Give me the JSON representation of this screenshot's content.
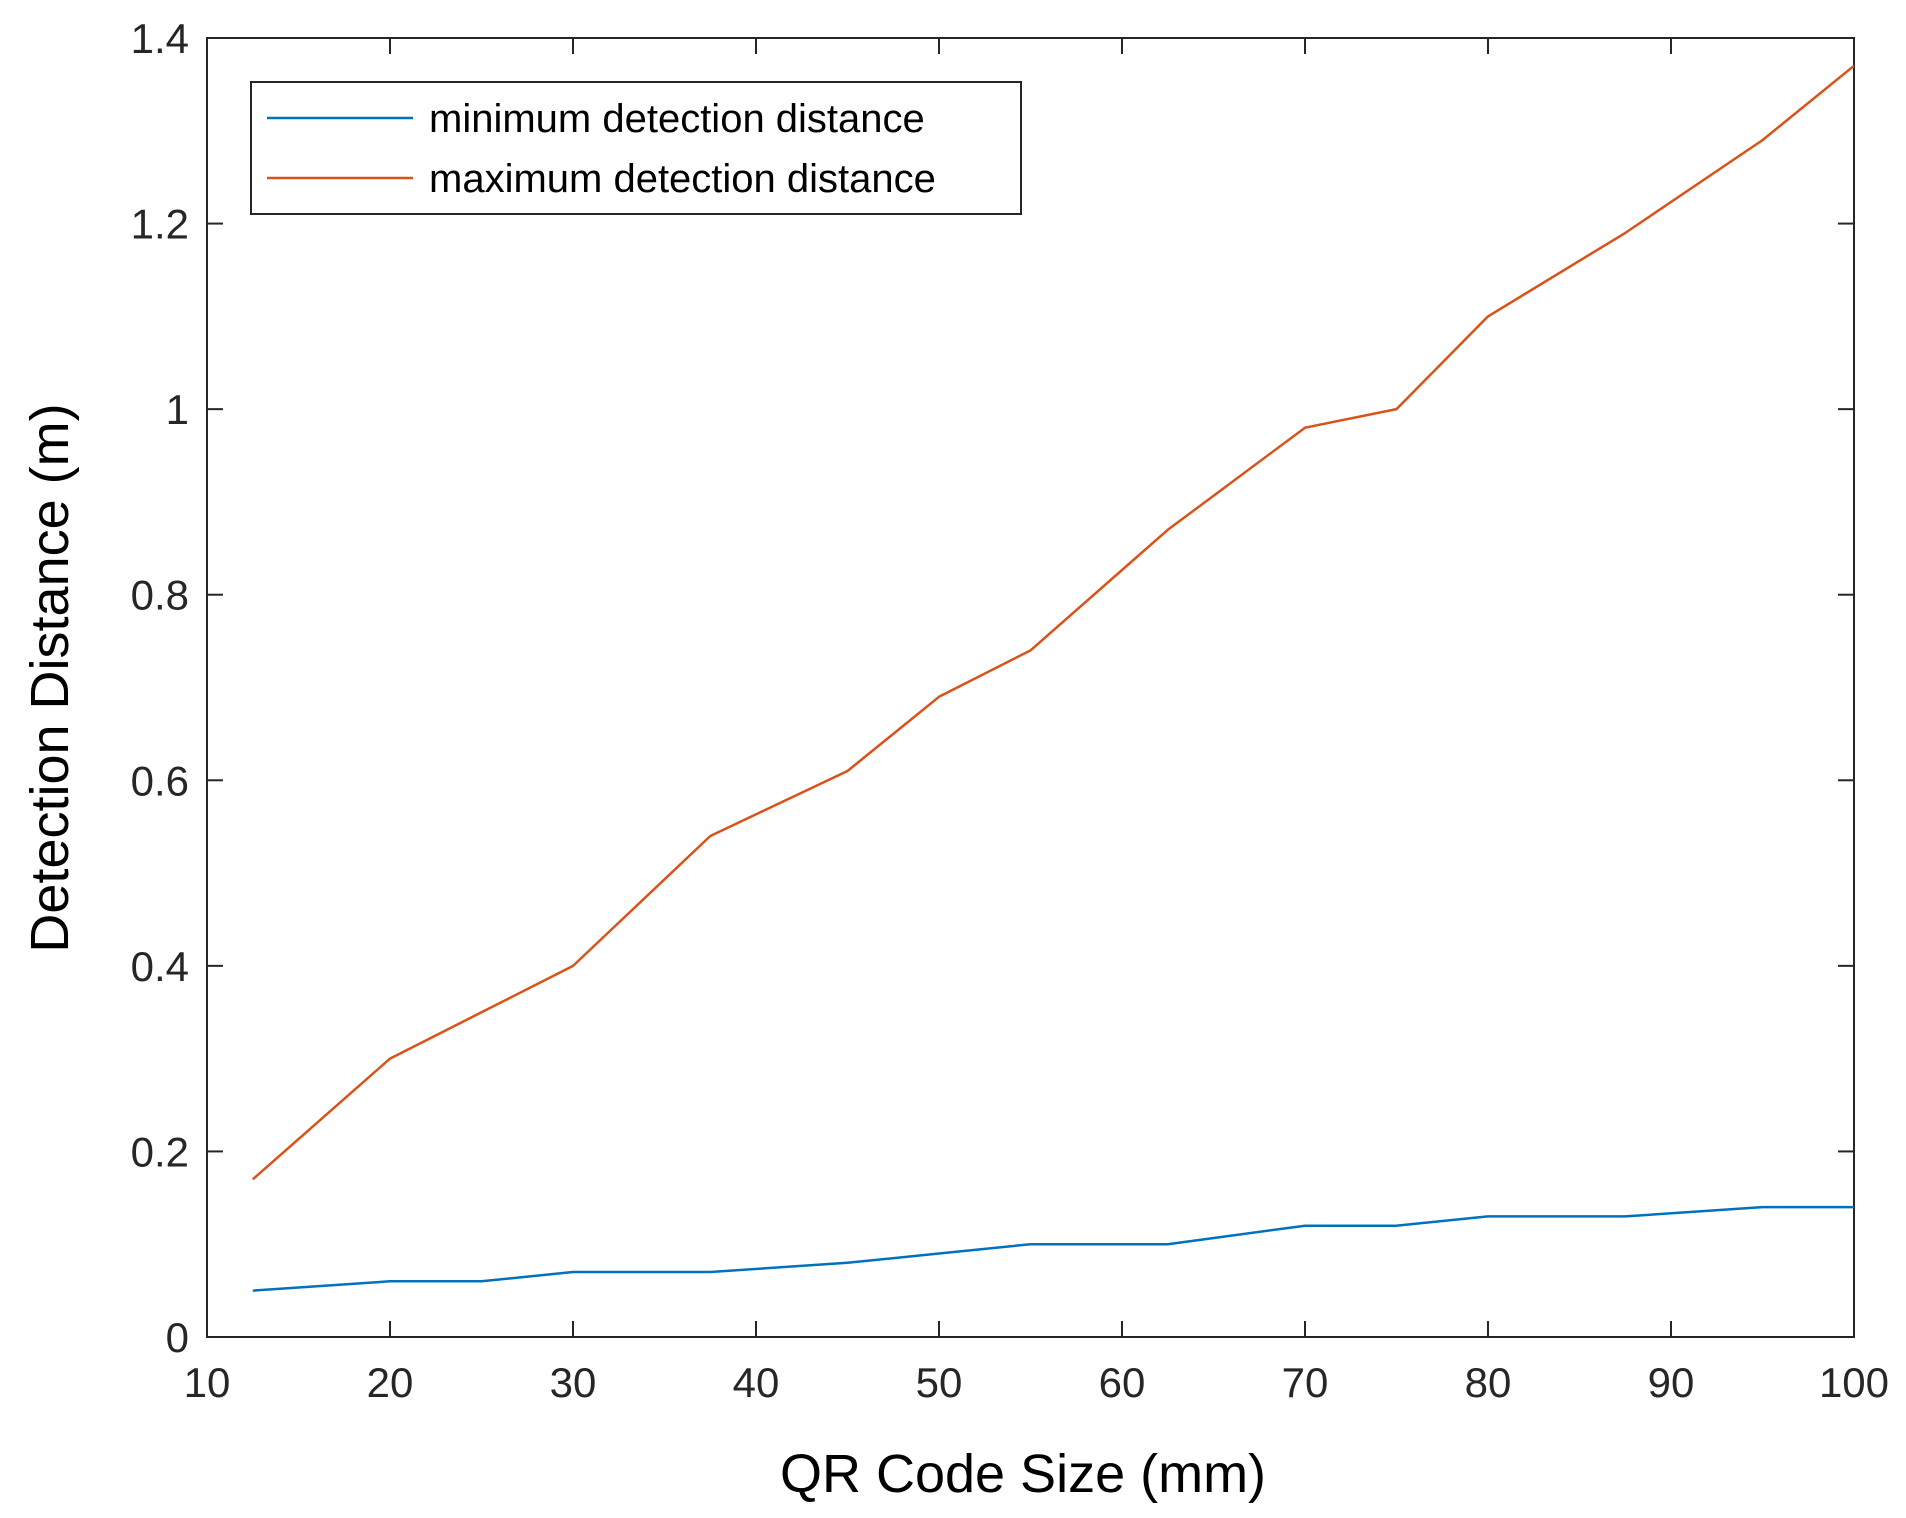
{
  "chart_data": {
    "type": "line",
    "title": "",
    "xlabel": "QR Code Size (mm)",
    "ylabel": "Detection Distance (m)",
    "xlim": [
      10,
      100
    ],
    "ylim": [
      0,
      1.4
    ],
    "xticks": [
      10,
      20,
      30,
      40,
      50,
      60,
      70,
      80,
      90,
      100
    ],
    "yticks": [
      0,
      0.2,
      0.4,
      0.6,
      0.8,
      1.0,
      1.2,
      1.4
    ],
    "xtick_labels": [
      "10",
      "20",
      "30",
      "40",
      "50",
      "60",
      "70",
      "80",
      "90",
      "100"
    ],
    "ytick_labels": [
      "0",
      "0.2",
      "0.4",
      "0.6",
      "0.8",
      "1",
      "1.2",
      "1.4"
    ],
    "grid": false,
    "legend_position": "top-left",
    "series": [
      {
        "name": "minimum detection distance",
        "color": "#0072BD",
        "x": [
          12.5,
          20,
          25,
          30,
          37.5,
          45,
          50,
          55,
          62.5,
          70,
          75,
          80,
          87.5,
          95,
          100
        ],
        "y": [
          0.05,
          0.06,
          0.06,
          0.07,
          0.07,
          0.08,
          0.09,
          0.1,
          0.1,
          0.12,
          0.12,
          0.13,
          0.13,
          0.14,
          0.14
        ]
      },
      {
        "name": "maximum detection distance",
        "color": "#D95319",
        "x": [
          12.5,
          20,
          25,
          30,
          37.5,
          45,
          50,
          55,
          62.5,
          70,
          75,
          80,
          87.5,
          95,
          100
        ],
        "y": [
          0.17,
          0.3,
          0.35,
          0.4,
          0.54,
          0.61,
          0.69,
          0.74,
          0.87,
          0.98,
          1.0,
          1.1,
          1.19,
          1.29,
          1.37
        ]
      }
    ]
  }
}
